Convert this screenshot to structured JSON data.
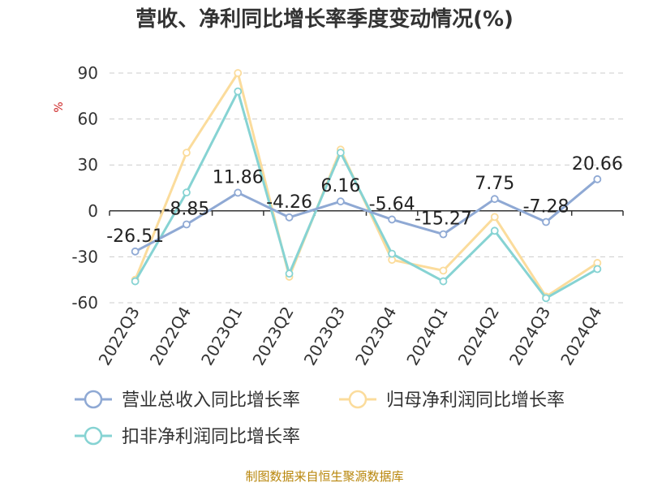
{
  "chart_data": {
    "type": "line",
    "title": "营收、净利同比增长率季度变动情况(%)",
    "ylabel": "%",
    "categories": [
      "2022Q3",
      "2022Q4",
      "2023Q1",
      "2023Q2",
      "2023Q3",
      "2023Q4",
      "2024Q1",
      "2024Q2",
      "2024Q3",
      "2024Q4"
    ],
    "ylim": [
      -60,
      90
    ],
    "yticks": [
      90,
      60,
      30,
      0,
      -30,
      -60
    ],
    "grid": true,
    "legend_position": "bottom",
    "series": [
      {
        "name": "营业总收入同比增长率",
        "color": "#8fa9d4",
        "values": [
          -26.51,
          -8.85,
          11.86,
          -4.26,
          6.16,
          -5.64,
          -15.27,
          7.75,
          -7.28,
          20.66
        ],
        "labels": [
          "-26.51",
          "-8.85",
          "11.86",
          "-4.26",
          "6.16",
          "-5.64",
          "-15.27",
          "7.75",
          "-7.28",
          "20.66"
        ]
      },
      {
        "name": "归母净利润同比增长率",
        "color": "#fbdc9c",
        "values": [
          -45,
          38,
          90,
          -43,
          40,
          -32,
          -39,
          -4,
          -56,
          -34
        ]
      },
      {
        "name": "扣非净利润同比增长率",
        "color": "#86d3d3",
        "values": [
          -46,
          12,
          78,
          -41,
          38,
          -28,
          -46,
          -13,
          -57,
          -38
        ]
      }
    ]
  },
  "source": "制图数据来自恒生聚源数据库"
}
